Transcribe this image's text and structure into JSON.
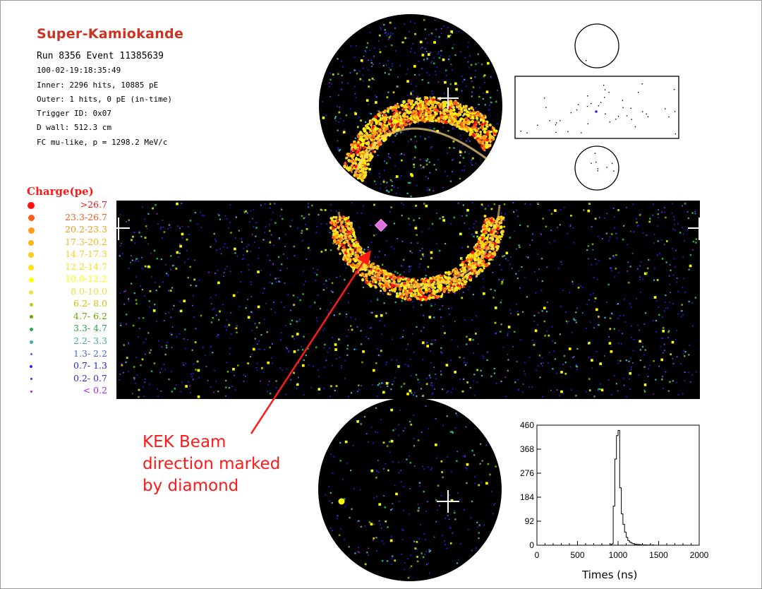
{
  "header": {
    "title": "Super-Kamiokande",
    "run_line": "Run 8356 Event 11385639",
    "timestamp": "100-02-19:18:35:49",
    "inner": "Inner: 2296 hits, 10885 pE",
    "outer": "Outer: 1 hits, 0 pE (in-time)",
    "trigger": "Trigger ID: 0x07",
    "dwall": "D wall: 512.3 cm",
    "fc": "FC mu-like, p = 1298.2 MeV/c"
  },
  "legend": {
    "title": "Charge(pe)",
    "items": [
      {
        "label": ">26.7",
        "color": "#ff1010",
        "size": 10
      },
      {
        "label": "23.3-26.7",
        "color": "#ff5a1a",
        "size": 9
      },
      {
        "label": "20.2-23.3",
        "color": "#ff9a1a",
        "size": 9
      },
      {
        "label": "17.3-20.2",
        "color": "#ffb31a",
        "size": 8
      },
      {
        "label": "14.7-17.3",
        "color": "#ffcc1a",
        "size": 8
      },
      {
        "label": "12.2-14.7",
        "color": "#ffe01a",
        "size": 8
      },
      {
        "label": "10.0-12.2",
        "color": "#ffff00",
        "size": 7
      },
      {
        "label": "8.0-10.0",
        "color": "#f0e040",
        "size": 6
      },
      {
        "label": "6.2- 8.0",
        "color": "#c8c800",
        "size": 5
      },
      {
        "label": "4.7- 6.2",
        "color": "#66aa00",
        "size": 5
      },
      {
        "label": "3.3- 4.7",
        "color": "#22aa44",
        "size": 5
      },
      {
        "label": "2.2- 3.3",
        "color": "#44aaaa",
        "size": 5
      },
      {
        "label": "1.3- 2.2",
        "color": "#4466ff",
        "size": 3
      },
      {
        "label": "0.7- 1.3",
        "color": "#2222ff",
        "size": 4
      },
      {
        "label": "0.2- 0.7",
        "color": "#4422dd",
        "size": 3
      },
      {
        "label": "< 0.2",
        "color": "#aa22ff",
        "size": 3
      }
    ]
  },
  "annotation": {
    "lines": [
      "KEK Beam",
      "direction marked",
      "by diamond"
    ],
    "color": "#ff1a1a"
  },
  "histogram": {
    "xlabel": "Times (ns)",
    "x_ticks": [
      "0",
      "500",
      "1000",
      "1500",
      "2000"
    ],
    "y_ticks": [
      "0",
      "92",
      "184",
      "276",
      "368",
      "460"
    ],
    "xlim": [
      0,
      2000
    ],
    "ylim": [
      0,
      460
    ],
    "bins_start": 900,
    "bin_width": 20,
    "counts": [
      2,
      5,
      150,
      330,
      420,
      440,
      220,
      120,
      80,
      50,
      30,
      18,
      12,
      8,
      6,
      4,
      3,
      3,
      2,
      2,
      1,
      1,
      1,
      0,
      1,
      0,
      1
    ]
  }
}
